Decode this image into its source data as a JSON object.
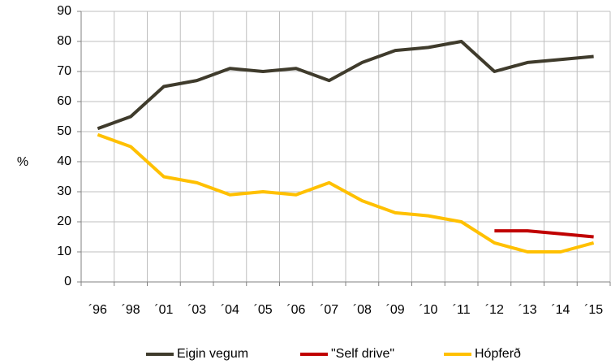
{
  "chart_data": {
    "type": "line",
    "y_label": "%",
    "categories": [
      "´96",
      "´98",
      "´01",
      "´03",
      "´04",
      "´05",
      "´06",
      "´07",
      "´08",
      "´09",
      "´10",
      "´11",
      "´12",
      "´13",
      "´14",
      "´15"
    ],
    "series": [
      {
        "name": "Eigin vegum",
        "color": "#3f3b2c",
        "values": [
          51,
          55,
          65,
          67,
          71,
          70,
          71,
          67,
          73,
          77,
          78,
          80,
          70,
          73,
          74,
          75
        ]
      },
      {
        "name": "\"Self drive\"",
        "color": "#c00000",
        "values": [
          null,
          null,
          null,
          null,
          null,
          null,
          null,
          null,
          null,
          null,
          null,
          null,
          17,
          17,
          16,
          15
        ]
      },
      {
        "name": "Hópferð",
        "color": "#ffc000",
        "values": [
          49,
          45,
          35,
          33,
          29,
          30,
          29,
          33,
          27,
          23,
          22,
          20,
          13,
          10,
          10,
          13
        ]
      }
    ],
    "ylim": [
      0,
      90
    ],
    "yticks": [
      0,
      10,
      20,
      30,
      40,
      50,
      60,
      70,
      80,
      90
    ],
    "grid": true,
    "legend": "bottom"
  }
}
